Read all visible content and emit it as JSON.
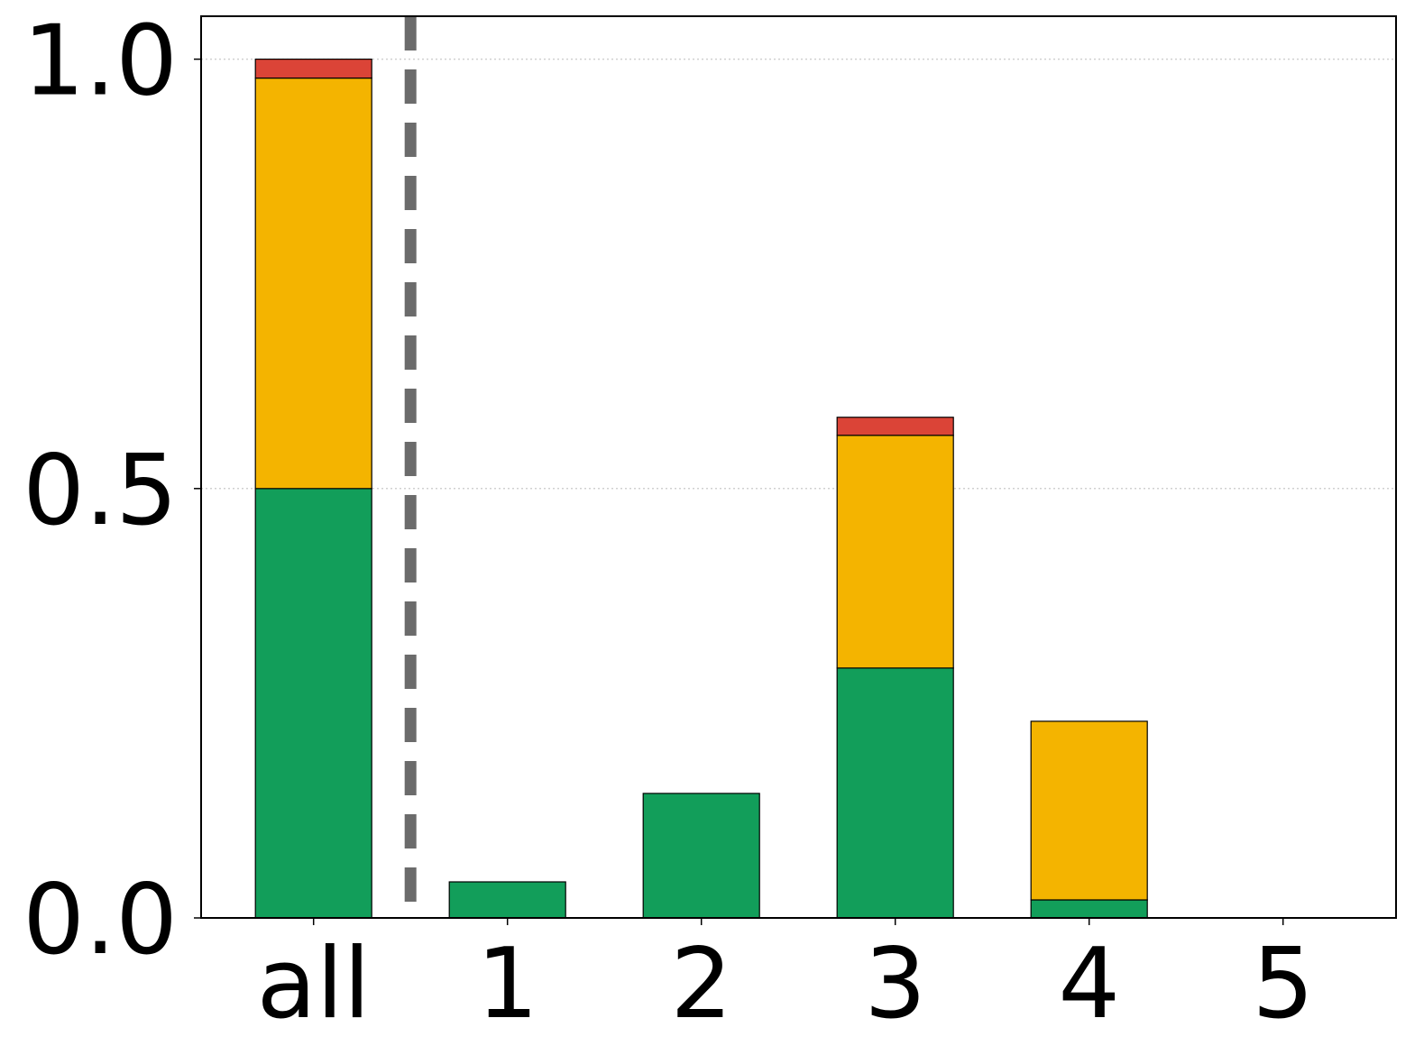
{
  "chart_data": {
    "type": "stacked_bar",
    "categories": [
      "all",
      "1",
      "2",
      "3",
      "4",
      "5"
    ],
    "series": [
      {
        "color": "#129e5a",
        "values": [
          0.5,
          0.042,
          0.145,
          0.291,
          0.021,
          0
        ]
      },
      {
        "color": "#f4b400",
        "values": [
          0.478,
          0,
          0,
          0.271,
          0.208,
          0
        ]
      },
      {
        "color": "#db4437",
        "values": [
          0.022,
          0,
          0,
          0.021,
          0,
          0
        ]
      }
    ],
    "ylim": [
      0,
      1.05
    ],
    "yticks": [
      {
        "value": 0,
        "label": "0.0"
      },
      {
        "value": 0.5,
        "label": "0.5"
      },
      {
        "value": 1,
        "label": "1.0"
      }
    ],
    "grid": true
  }
}
